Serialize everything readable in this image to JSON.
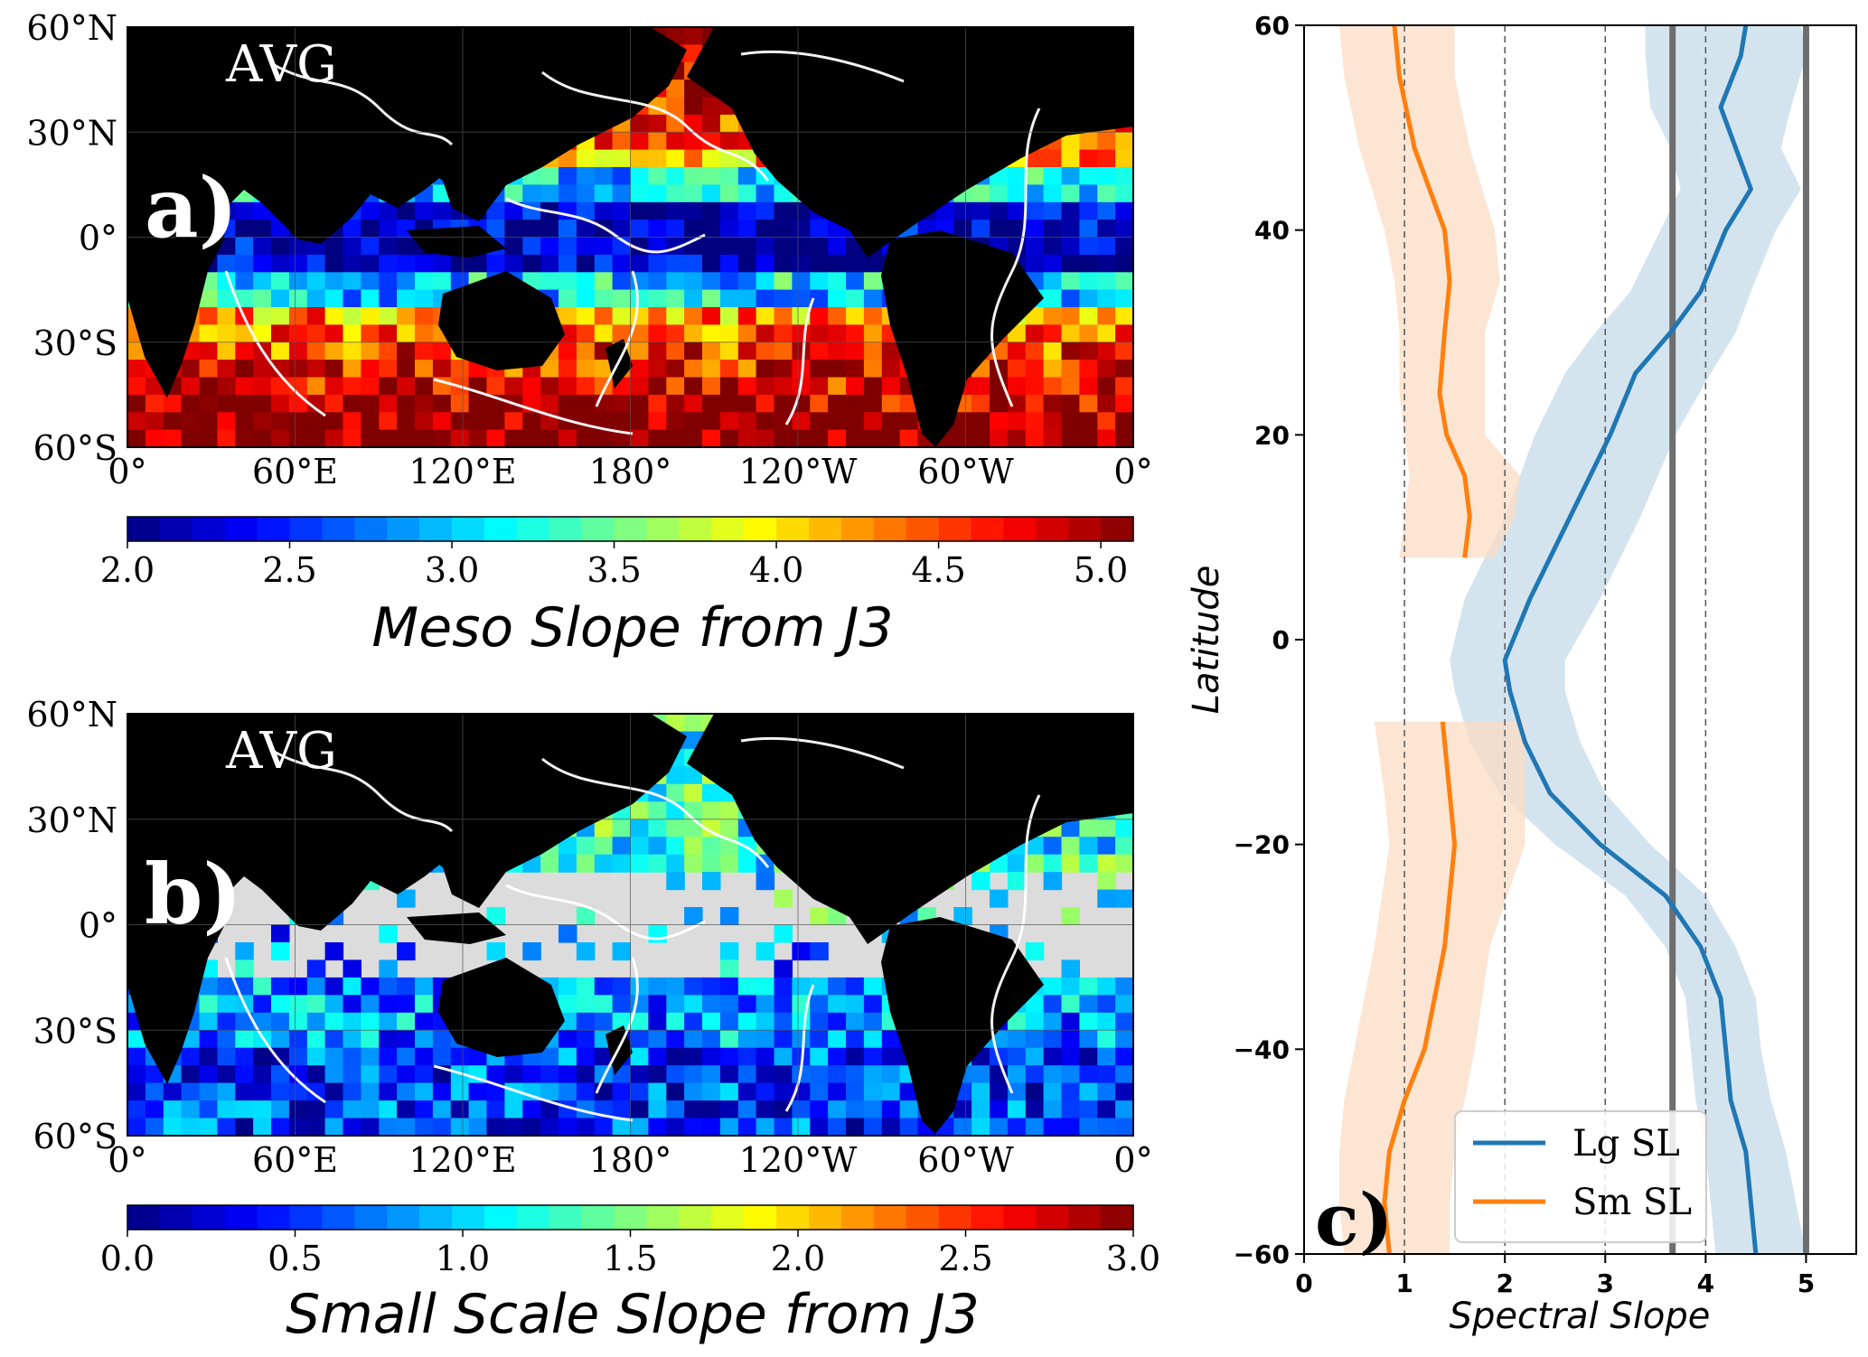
{
  "chart_data": [
    {
      "type": "heatmap",
      "panel_label": "a)",
      "inset_text": "AVG",
      "colorbar_label": "Meso Slope from J3",
      "colorbar_ticks": [
        "2.0",
        "2.5",
        "3.0",
        "3.5",
        "4.0",
        "4.5",
        "5.0"
      ],
      "colorbar_range": [
        2.0,
        5.1
      ],
      "x_ticks": [
        "0°",
        "60°E",
        "120°E",
        "180°",
        "120°W",
        "60°W",
        "0°"
      ],
      "y_ticks": [
        "60°N",
        "30°N",
        "0°",
        "30°S",
        "60°S"
      ],
      "colormap": "jet"
    },
    {
      "type": "heatmap",
      "panel_label": "b)",
      "inset_text": "AVG",
      "colorbar_label": "Small Scale Slope from J3",
      "colorbar_ticks": [
        "0.0",
        "0.5",
        "1.0",
        "1.5",
        "2.0",
        "2.5",
        "3.0"
      ],
      "colorbar_range": [
        0.0,
        3.0
      ],
      "x_ticks": [
        "0°",
        "60°E",
        "120°E",
        "180°",
        "120°W",
        "60°W",
        "0°"
      ],
      "y_ticks": [
        "60°N",
        "30°N",
        "0°",
        "30°S",
        "60°S"
      ],
      "colormap": "jet"
    },
    {
      "type": "line",
      "panel_label": "c)",
      "xlabel": "Spectral Slope",
      "ylabel": "Latitude",
      "xlim": [
        0,
        5.5
      ],
      "ylim": [
        -60,
        60
      ],
      "x_ticks": [
        "0",
        "1",
        "2",
        "3",
        "4",
        "5"
      ],
      "y_ticks": [
        "60",
        "40",
        "20",
        "0",
        "−20",
        "−40",
        "−60"
      ],
      "dashed_vlines": [
        1,
        2,
        3,
        4
      ],
      "solid_vlines": [
        3.67,
        5.0
      ],
      "legend_position": "lower-right",
      "series": [
        {
          "name": "Lg SL",
          "color": "#1f77b4",
          "band_color": "#c6dbea",
          "lat": [
            60,
            57,
            52,
            48,
            44,
            40,
            34,
            30,
            26,
            20,
            12,
            4,
            -2,
            -5,
            -10,
            -15,
            -20,
            -25,
            -30,
            -35,
            -40,
            -45,
            -50,
            -55,
            -60
          ],
          "mean": [
            4.4,
            4.35,
            4.15,
            4.3,
            4.45,
            4.2,
            3.95,
            3.65,
            3.3,
            3.05,
            2.65,
            2.25,
            2.0,
            2.05,
            2.2,
            2.45,
            2.95,
            3.6,
            3.95,
            4.15,
            4.2,
            4.25,
            4.4,
            4.45,
            4.5
          ],
          "low": [
            3.4,
            3.4,
            3.45,
            3.65,
            3.75,
            3.55,
            3.25,
            2.9,
            2.6,
            2.3,
            2.0,
            1.6,
            1.45,
            1.5,
            1.65,
            1.95,
            2.5,
            3.2,
            3.6,
            3.8,
            3.85,
            3.9,
            4.0,
            4.05,
            4.1
          ],
          "high": [
            4.95,
            5.0,
            4.85,
            4.75,
            4.95,
            4.7,
            4.45,
            4.3,
            4.05,
            3.7,
            3.35,
            2.95,
            2.6,
            2.6,
            2.75,
            3.0,
            3.45,
            4.0,
            4.3,
            4.5,
            4.55,
            4.65,
            4.8,
            4.9,
            5.0
          ]
        },
        {
          "name": "Sm SL",
          "color": "#ff7f0e",
          "band_color": "#fbdcc4",
          "segments": [
            {
              "lat": [
                60,
                55,
                48,
                40,
                35,
                30,
                24,
                20,
                16,
                12,
                8
              ],
              "mean": [
                0.9,
                0.95,
                1.1,
                1.4,
                1.45,
                1.4,
                1.35,
                1.42,
                1.6,
                1.65,
                1.6
              ],
              "low": [
                0.35,
                0.4,
                0.55,
                0.8,
                0.9,
                0.95,
                0.95,
                1.0,
                1.05,
                1.0,
                0.95
              ],
              "high": [
                1.5,
                1.5,
                1.65,
                1.9,
                1.95,
                1.8,
                1.8,
                1.8,
                2.15,
                2.1,
                1.9
              ]
            },
            {
              "lat": [
                -8,
                -15,
                -20,
                -30,
                -40,
                -45,
                -50,
                -55,
                -60
              ],
              "mean": [
                1.38,
                1.45,
                1.5,
                1.4,
                1.2,
                1.0,
                0.85,
                0.8,
                0.85
              ],
              "low": [
                0.7,
                0.8,
                0.85,
                0.7,
                0.5,
                0.4,
                0.35,
                0.35,
                0.4
              ],
              "high": [
                2.2,
                2.2,
                2.2,
                1.85,
                1.7,
                1.6,
                1.5,
                1.45,
                1.45
              ]
            }
          ]
        }
      ]
    }
  ]
}
